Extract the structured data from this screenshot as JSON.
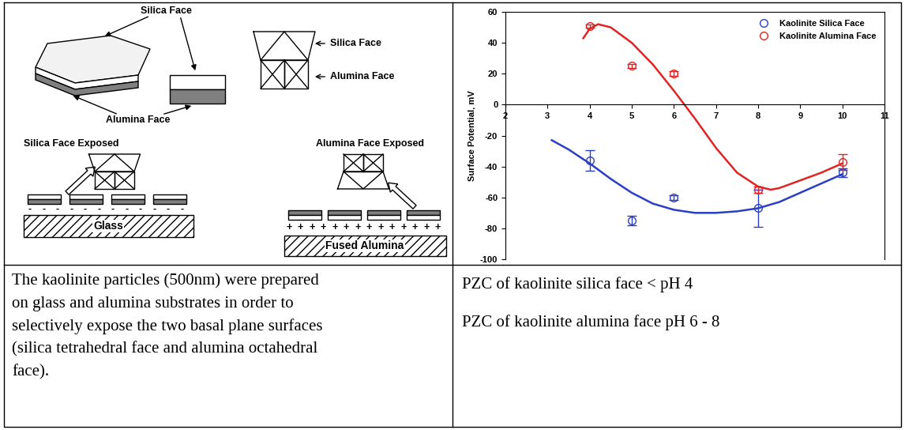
{
  "diagram": {
    "top_label": "Silica Face",
    "bottom_label": "Alumina Face",
    "legend_silica": "Silica Face",
    "legend_alumina": "Alumina Face",
    "left_title": "Silica Face Exposed",
    "right_title": "Alumina Face Exposed",
    "left_substrate": "Glass",
    "right_substrate": "Fused Alumina",
    "left_charge": "-",
    "right_charge": "+"
  },
  "chart_data": {
    "type": "scatter",
    "ylabel": "Surface Potential, mV",
    "xlim": [
      2,
      11
    ],
    "xticks": [
      2,
      3,
      4,
      5,
      6,
      7,
      8,
      9,
      10,
      11
    ],
    "ylim": [
      -100,
      60
    ],
    "yticks": [
      -100,
      -80,
      -60,
      -40,
      -20,
      0,
      20,
      40,
      60
    ],
    "grid": false,
    "legend": "upper right",
    "marker": "o",
    "series": [
      {
        "name": "Kaolinite Silica Face",
        "color": "#2a3fc4",
        "x": [
          4,
          5,
          6,
          8,
          10
        ],
        "values": [
          -36,
          -75,
          -60,
          -67,
          -44
        ],
        "errors": [
          6.5,
          3,
          1.5,
          12,
          3
        ],
        "trend": {
          "x": [
            3.1,
            3.5,
            4,
            4.5,
            5,
            5.5,
            6,
            6.5,
            7,
            7.5,
            8,
            8.5,
            9,
            9.5,
            10
          ],
          "values": [
            -23,
            -29,
            -38,
            -48,
            -57,
            -64,
            -68,
            -70,
            -70,
            -69,
            -67,
            -63,
            -57,
            -51,
            -45
          ]
        }
      },
      {
        "name": "Kaolinite Alumina Face",
        "color": "#e02424",
        "x": [
          4,
          5,
          6,
          8,
          10
        ],
        "values": [
          51,
          25,
          20,
          -55,
          -37
        ],
        "errors": [
          1,
          1.5,
          1.5,
          2,
          5
        ],
        "trend": {
          "x": [
            3.85,
            4,
            4.2,
            4.5,
            5,
            5.5,
            6,
            6.5,
            7,
            7.5,
            8,
            8.3,
            8.5,
            9,
            9.5,
            10
          ],
          "values": [
            43,
            49,
            52,
            50,
            40,
            26,
            9,
            -9,
            -28,
            -44,
            -53,
            -55,
            -54,
            -49,
            -44,
            -38
          ]
        }
      }
    ]
  },
  "captions": {
    "left": [
      "The kaolinite particles (500nm) were prepared",
      "on glass and alumina substrates in order to",
      "selectively expose the two basal plane surfaces",
      "(silica tetrahedral face and alumina octahedral",
      "face)."
    ],
    "right": [
      "PZC of kaolinite silica face < pH 4",
      "PZC of kaolinite alumina face pH 6 - 8"
    ]
  }
}
